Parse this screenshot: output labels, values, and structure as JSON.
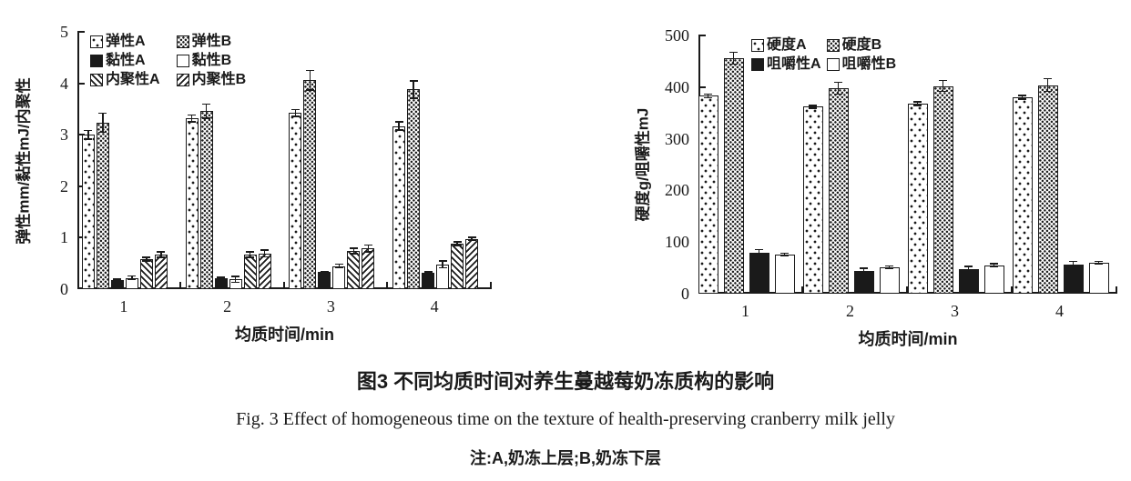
{
  "figure": {
    "caption_zh": "图3  不同均质时间对养生蔓越莓奶冻质构的影响",
    "caption_en": "Fig. 3  Effect of homogeneous time on the texture of health-preserving cranberry milk jelly",
    "note": "注:A,奶冻上层;B,奶冻下层"
  },
  "colors": {
    "ink": "#1a1a1a",
    "background": "#ffffff"
  },
  "chart_data": [
    {
      "type": "bar",
      "title": "",
      "xlabel": "均质时间/min",
      "ylabel": "弹性mm/黏性mJ/内聚性",
      "ylim": [
        0,
        5
      ],
      "yticks": [
        "0",
        "1",
        "2",
        "3",
        "4",
        "5"
      ],
      "categories": [
        "1",
        "2",
        "3",
        "4"
      ],
      "grid": false,
      "legend_position": "top-left-inside",
      "error_bars": true,
      "series": [
        {
          "name": "弹性A",
          "pattern": "dots-sparse",
          "values": [
            3.0,
            3.32,
            3.42,
            3.17
          ],
          "errors": [
            0.1,
            0.08,
            0.08,
            0.09
          ]
        },
        {
          "name": "弹性B",
          "pattern": "dots-dense",
          "values": [
            3.23,
            3.46,
            4.06,
            3.88
          ],
          "errors": [
            0.2,
            0.15,
            0.2,
            0.18
          ]
        },
        {
          "name": "黏性A",
          "pattern": "solid-black",
          "values": [
            0.18,
            0.22,
            0.33,
            0.32
          ],
          "errors": [
            0.03,
            0.02,
            0.03,
            0.03
          ]
        },
        {
          "name": "黏性B",
          "pattern": "white",
          "values": [
            0.22,
            0.19,
            0.45,
            0.48
          ],
          "errors": [
            0.05,
            0.07,
            0.05,
            0.08
          ]
        },
        {
          "name": "内聚性A",
          "pattern": "hatch-back",
          "values": [
            0.58,
            0.67,
            0.74,
            0.88
          ],
          "errors": [
            0.05,
            0.07,
            0.07,
            0.05
          ]
        },
        {
          "name": "内聚性B",
          "pattern": "hatch-forward",
          "values": [
            0.67,
            0.69,
            0.79,
            0.98
          ],
          "errors": [
            0.07,
            0.08,
            0.08,
            0.04
          ]
        }
      ]
    },
    {
      "type": "bar",
      "title": "",
      "xlabel": "均质时间/min",
      "ylabel": "硬度g/咀嚼性mJ",
      "ylim": [
        0,
        500
      ],
      "yticks": [
        "0",
        "100",
        "200",
        "300",
        "400",
        "500"
      ],
      "categories": [
        "1",
        "2",
        "3",
        "4"
      ],
      "grid": false,
      "legend_position": "top-left-inside",
      "error_bars": true,
      "series": [
        {
          "name": "硬度A",
          "pattern": "dots-sparse",
          "values": [
            383,
            362,
            368,
            380
          ],
          "errors": [
            5,
            4,
            5,
            5
          ]
        },
        {
          "name": "硬度B",
          "pattern": "dots-dense",
          "values": [
            456,
            398,
            402,
            404
          ],
          "errors": [
            13,
            13,
            12,
            14
          ]
        },
        {
          "name": "咀嚼性A",
          "pattern": "solid-black",
          "values": [
            80,
            44,
            48,
            56
          ],
          "errors": [
            7,
            7,
            6,
            8
          ]
        },
        {
          "name": "咀嚼性B",
          "pattern": "white",
          "values": [
            76,
            51,
            55,
            60
          ],
          "errors": [
            4,
            4,
            4,
            4
          ]
        }
      ]
    }
  ]
}
